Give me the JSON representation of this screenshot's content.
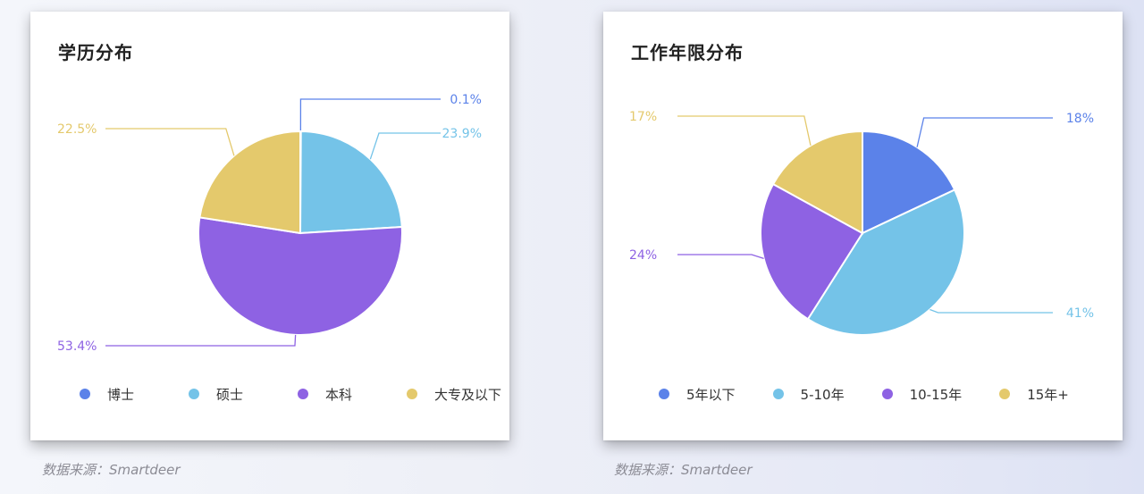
{
  "colors": {
    "blue": "#5b82e9",
    "light_blue": "#74c3e8",
    "purple": "#8e62e3",
    "yellow": "#e4c96c"
  },
  "source_text": "数据来源：Smartdeer",
  "chart_data": [
    {
      "type": "pie",
      "title": "学历分布",
      "categories": [
        "博士",
        "硕士",
        "本科",
        "大专及以下"
      ],
      "values": [
        0.1,
        23.9,
        53.4,
        22.5
      ],
      "labels": [
        "0.1%",
        "23.9%",
        "53.4%",
        "22.5%"
      ],
      "colors": [
        "#5b82e9",
        "#74c3e8",
        "#8e62e3",
        "#e4c96c"
      ],
      "legend": "bottom"
    },
    {
      "type": "pie",
      "title": "工作年限分布",
      "categories": [
        "5年以下",
        "5-10年",
        "10-15年",
        "15年+"
      ],
      "values": [
        18,
        41,
        24,
        17
      ],
      "labels": [
        "18%",
        "41%",
        "24%",
        "17%"
      ],
      "colors": [
        "#5b82e9",
        "#74c3e8",
        "#8e62e3",
        "#e4c96c"
      ],
      "legend": "bottom"
    }
  ]
}
